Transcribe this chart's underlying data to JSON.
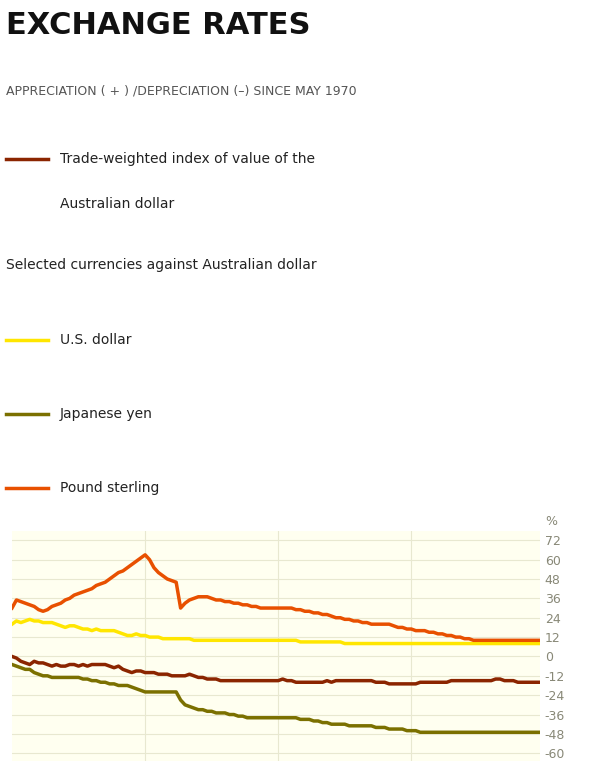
{
  "title": "EXCHANGE RATES",
  "subtitle": "APPRECIATION ( + ) /DEPRECIATION (–) SINCE MAY 1970",
  "legend_items": [
    {
      "label": "Trade-weighted index of value of the\nAustralian dollar",
      "color": "#8B2500"
    },
    {
      "label": "U.S. dollar",
      "color": "#FFE600"
    },
    {
      "label": "Japanese yen",
      "color": "#7B7000"
    },
    {
      "label": "Pound sterling",
      "color": "#E85000"
    }
  ],
  "selected_label": "Selected currencies against Australian dollar",
  "ylabel_text": "%",
  "yticks": [
    72,
    60,
    48,
    36,
    24,
    12,
    0,
    -12,
    -24,
    -36,
    -48,
    -60
  ],
  "ylim": [
    -65,
    78
  ],
  "bg_color": "#FFFFF0",
  "grid_color": "#E8E8D0",
  "title_color": "#1a1a1a",
  "tick_color": "#888877",
  "n_points": 120,
  "trade_weighted": [
    0,
    -1,
    -3,
    -4,
    -5,
    -3,
    -4,
    -4,
    -5,
    -6,
    -5,
    -6,
    -6,
    -5,
    -5,
    -6,
    -5,
    -6,
    -5,
    -5,
    -5,
    -5,
    -6,
    -7,
    -6,
    -8,
    -9,
    -10,
    -9,
    -9,
    -10,
    -10,
    -10,
    -11,
    -11,
    -11,
    -12,
    -12,
    -12,
    -12,
    -11,
    -12,
    -13,
    -13,
    -14,
    -14,
    -14,
    -15,
    -15,
    -15,
    -15,
    -15,
    -15,
    -15,
    -15,
    -15,
    -15,
    -15,
    -15,
    -15,
    -15,
    -14,
    -15,
    -15,
    -16,
    -16,
    -16,
    -16,
    -16,
    -16,
    -16,
    -15,
    -16,
    -15,
    -15,
    -15,
    -15,
    -15,
    -15,
    -15,
    -15,
    -15,
    -16,
    -16,
    -16,
    -17,
    -17,
    -17,
    -17,
    -17,
    -17,
    -17,
    -16,
    -16,
    -16,
    -16,
    -16,
    -16,
    -16,
    -15,
    -15,
    -15,
    -15,
    -15,
    -15,
    -15,
    -15,
    -15,
    -15,
    -14,
    -14,
    -15,
    -15,
    -15,
    -16,
    -16,
    -16,
    -16,
    -16,
    -16
  ],
  "us_dollar": [
    20,
    22,
    21,
    22,
    23,
    22,
    22,
    21,
    21,
    21,
    20,
    19,
    18,
    19,
    19,
    18,
    17,
    17,
    16,
    17,
    16,
    16,
    16,
    16,
    15,
    14,
    13,
    13,
    14,
    13,
    13,
    12,
    12,
    12,
    11,
    11,
    11,
    11,
    11,
    11,
    11,
    10,
    10,
    10,
    10,
    10,
    10,
    10,
    10,
    10,
    10,
    10,
    10,
    10,
    10,
    10,
    10,
    10,
    10,
    10,
    10,
    10,
    10,
    10,
    10,
    9,
    9,
    9,
    9,
    9,
    9,
    9,
    9,
    9,
    9,
    8,
    8,
    8,
    8,
    8,
    8,
    8,
    8,
    8,
    8,
    8,
    8,
    8,
    8,
    8,
    8,
    8,
    8,
    8,
    8,
    8,
    8,
    8,
    8,
    8,
    8,
    8,
    8,
    8,
    8,
    8,
    8,
    8,
    8,
    8,
    8,
    8,
    8,
    8,
    8,
    8,
    8,
    8,
    8,
    8
  ],
  "pound_sterling": [
    30,
    35,
    34,
    33,
    32,
    31,
    29,
    28,
    29,
    31,
    32,
    33,
    35,
    36,
    38,
    39,
    40,
    41,
    42,
    44,
    45,
    46,
    48,
    50,
    52,
    53,
    55,
    57,
    59,
    61,
    63,
    60,
    55,
    52,
    50,
    48,
    47,
    46,
    30,
    33,
    35,
    36,
    37,
    37,
    37,
    36,
    35,
    35,
    34,
    34,
    33,
    33,
    32,
    32,
    31,
    31,
    30,
    30,
    30,
    30,
    30,
    30,
    30,
    30,
    29,
    29,
    28,
    28,
    27,
    27,
    26,
    26,
    25,
    24,
    24,
    23,
    23,
    22,
    22,
    21,
    21,
    20,
    20,
    20,
    20,
    20,
    19,
    18,
    18,
    17,
    17,
    16,
    16,
    16,
    15,
    15,
    14,
    14,
    13,
    13,
    12,
    12,
    11,
    11,
    10,
    10,
    10,
    10,
    10,
    10,
    10,
    10,
    10,
    10,
    10,
    10,
    10,
    10,
    10,
    10
  ],
  "japanese_yen": [
    -5,
    -6,
    -7,
    -8,
    -8,
    -10,
    -11,
    -12,
    -12,
    -13,
    -13,
    -13,
    -13,
    -13,
    -13,
    -13,
    -14,
    -14,
    -15,
    -15,
    -16,
    -16,
    -17,
    -17,
    -18,
    -18,
    -18,
    -19,
    -20,
    -21,
    -22,
    -22,
    -22,
    -22,
    -22,
    -22,
    -22,
    -22,
    -27,
    -30,
    -31,
    -32,
    -33,
    -33,
    -34,
    -34,
    -35,
    -35,
    -35,
    -36,
    -36,
    -37,
    -37,
    -38,
    -38,
    -38,
    -38,
    -38,
    -38,
    -38,
    -38,
    -38,
    -38,
    -38,
    -38,
    -39,
    -39,
    -39,
    -40,
    -40,
    -41,
    -41,
    -42,
    -42,
    -42,
    -42,
    -43,
    -43,
    -43,
    -43,
    -43,
    -43,
    -44,
    -44,
    -44,
    -45,
    -45,
    -45,
    -45,
    -46,
    -46,
    -46,
    -47,
    -47,
    -47,
    -47,
    -47,
    -47,
    -47,
    -47,
    -47,
    -47,
    -47,
    -47,
    -47,
    -47,
    -47,
    -47,
    -47,
    -47,
    -47,
    -47,
    -47,
    -47,
    -47,
    -47,
    -47,
    -47,
    -47,
    -47
  ]
}
